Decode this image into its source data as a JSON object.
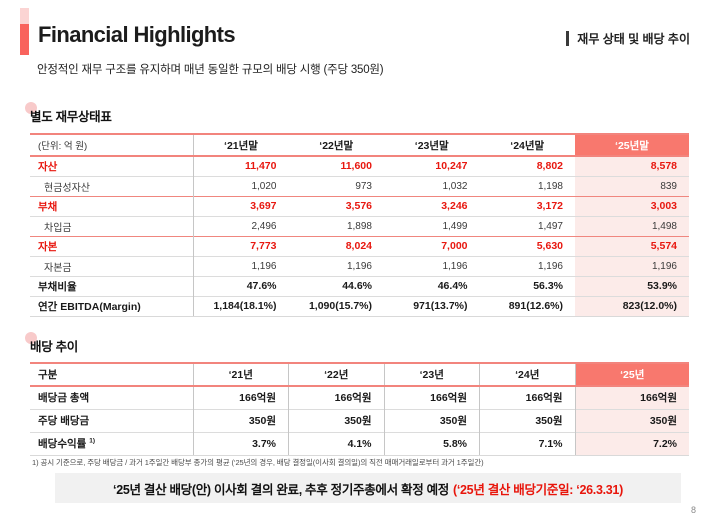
{
  "header": {
    "title": "Financial Highlights",
    "right_label": "재무 상태 및 배당 추이",
    "subtitle": "안정적인 재무 구조를 유지하며 매년 동일한 규모의 배당 시행 (주당 350원)"
  },
  "colors": {
    "accent_red_text": "#e8170f",
    "highlight_header_bg": "#f8786e",
    "highlight_column_bg": "#fcebe9",
    "accent_bar_red": "#f9635d",
    "accent_bar_pink": "#fbd4d3",
    "table_line_red": "#f2847d",
    "banner_bg": "#f1f1f1"
  },
  "balance_table": {
    "section_title": "별도 재무상태표",
    "unit_label": "(단위: 억 원)",
    "columns": [
      "‘21년말",
      "‘22년말",
      "‘23년말",
      "‘24년말",
      "‘25년말"
    ],
    "rows": [
      {
        "label": "자산",
        "values": [
          "11,470",
          "11,600",
          "10,247",
          "8,802",
          "8,578"
        ]
      },
      {
        "label": "현금성자산",
        "values": [
          "1,020",
          "973",
          "1,032",
          "1,198",
          "839"
        ]
      },
      {
        "label": "부채",
        "values": [
          "3,697",
          "3,576",
          "3,246",
          "3,172",
          "3,003"
        ]
      },
      {
        "label": "차입금",
        "values": [
          "2,496",
          "1,898",
          "1,499",
          "1,497",
          "1,498"
        ]
      },
      {
        "label": "자본",
        "values": [
          "7,773",
          "8,024",
          "7,000",
          "5,630",
          "5,574"
        ]
      },
      {
        "label": "자본금",
        "values": [
          "1,196",
          "1,196",
          "1,196",
          "1,196",
          "1,196"
        ]
      },
      {
        "label": "부채비율",
        "values": [
          "47.6%",
          "44.6%",
          "46.4%",
          "56.3%",
          "53.9%"
        ]
      },
      {
        "label": "연간 EBITDA(Margin)",
        "values": [
          "1,184(18.1%)",
          "1,090(15.7%)",
          "971(13.7%)",
          "891(12.6%)",
          "823(12.0%)"
        ]
      }
    ]
  },
  "dividend_table": {
    "section_title": "배당 추이",
    "header_label": "구분",
    "columns": [
      "‘21년",
      "‘22년",
      "‘23년",
      "‘24년",
      "‘25년"
    ],
    "rows": [
      {
        "label": "배당금 총액",
        "sup": "",
        "values": [
          "166억원",
          "166억원",
          "166억원",
          "166억원",
          "166억원"
        ]
      },
      {
        "label": "주당 배당금",
        "sup": "",
        "values": [
          "350원",
          "350원",
          "350원",
          "350원",
          "350원"
        ]
      },
      {
        "label": "배당수익률",
        "sup": "1)",
        "values": [
          "3.7%",
          "4.1%",
          "5.8%",
          "7.1%",
          "7.2%"
        ]
      }
    ],
    "footnote": "1)  공시 기준으로, 주당 배당금 / 과거 1주일간 배당부 종가의 평균  (‘25년의 경우, 배당 결정일(이사회 결의일)의 직전 매매거래일로부터 과거 1주일간)"
  },
  "banner": {
    "text_black": "‘25년 결산 배당(안) 이사회 결의 완료, 추후 정기주총에서 확정 예정",
    "text_red": "(‘25년 결산 배당기준일: ‘26.3.31)"
  },
  "page_number": "8"
}
